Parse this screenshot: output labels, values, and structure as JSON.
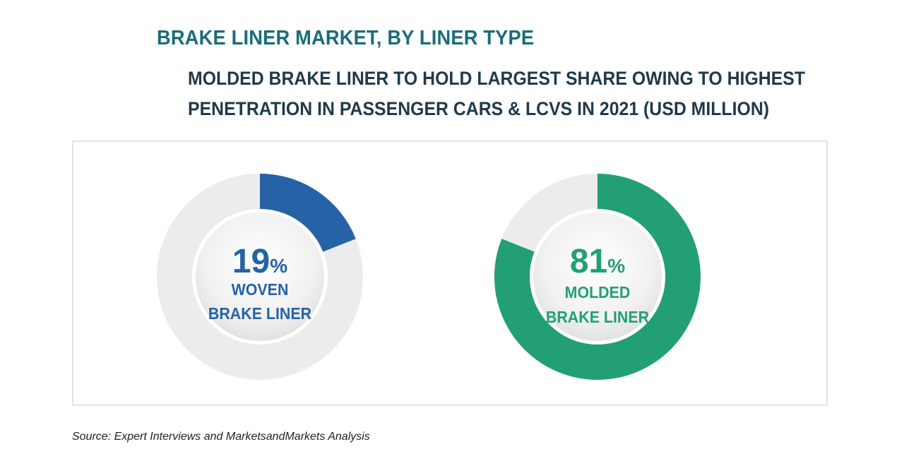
{
  "header": {
    "title": "BRAKE LINER MARKET, BY LINER TYPE",
    "subtitle_line1": "MOLDED BRAKE LINER TO HOLD LARGEST SHARE OWING TO HIGHEST",
    "subtitle_line2": "PENETRATION IN PASSENGER CARS & LCVS IN 2021 (USD MILLION)"
  },
  "colors": {
    "title": "#1b6c7a",
    "track": "#ececec",
    "woven": "#2563a6",
    "molded": "#22a073"
  },
  "chart_data": [
    {
      "type": "pie",
      "title": "Woven Brake Liner",
      "value": 19,
      "unit": "%",
      "percent_label": "19",
      "percent_symbol": "%",
      "label_line1": "WOVEN",
      "label_line2": "BRAKE LINER",
      "color_key": "woven"
    },
    {
      "type": "pie",
      "title": "Molded Brake Liner",
      "value": 81,
      "unit": "%",
      "percent_label": "81",
      "percent_symbol": "%",
      "label_line1": "MOLDED",
      "label_line2": "BRAKE LINER",
      "color_key": "molded"
    }
  ],
  "footer": {
    "source": "Source: Expert Interviews and MarketsandMarkets Analysis"
  }
}
